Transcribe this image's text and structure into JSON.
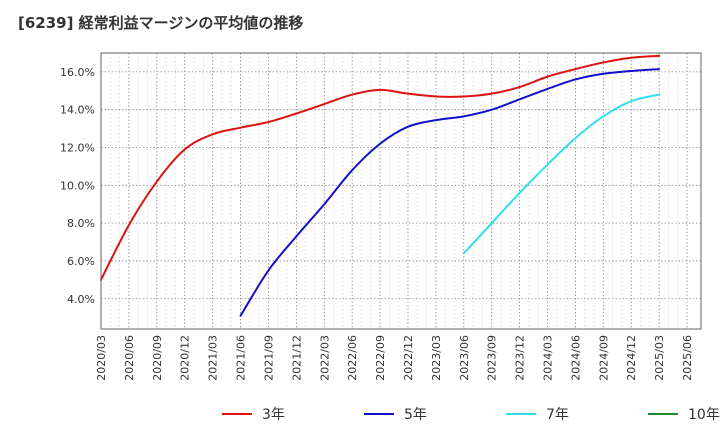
{
  "title": "[6239]  経常利益マージンの平均値の推移",
  "chart_data": {
    "type": "line",
    "title": "[6239]  経常利益マージンの平均値の推移",
    "xlabel": "",
    "ylabel": "",
    "x_tick_labels": [
      "2020/03",
      "2020/06",
      "2020/09",
      "2020/12",
      "2021/03",
      "2021/06",
      "2021/09",
      "2021/12",
      "2022/03",
      "2022/06",
      "2022/09",
      "2022/12",
      "2023/03",
      "2023/06",
      "2023/09",
      "2023/12",
      "2024/03",
      "2024/06",
      "2024/09",
      "2024/12",
      "2025/03",
      "2025/06"
    ],
    "y_ticks": [
      4.0,
      6.0,
      8.0,
      10.0,
      12.0,
      14.0,
      16.0
    ],
    "y_tick_labels": [
      "4.0%",
      "6.0%",
      "8.0%",
      "10.0%",
      "12.0%",
      "14.0%",
      "16.0%"
    ],
    "ylim": [
      2.4,
      17.0
    ],
    "grid": true,
    "legend_position": "bottom",
    "series": [
      {
        "name": "3年",
        "color": "#dd1111",
        "points": [
          [
            "2020/03",
            5.0
          ],
          [
            "2020/06",
            7.9
          ],
          [
            "2020/09",
            10.2
          ],
          [
            "2020/12",
            11.9
          ],
          [
            "2021/03",
            12.7
          ],
          [
            "2021/06",
            13.05
          ],
          [
            "2021/09",
            13.35
          ],
          [
            "2021/12",
            13.8
          ],
          [
            "2022/03",
            14.3
          ],
          [
            "2022/06",
            14.8
          ],
          [
            "2022/09",
            15.05
          ],
          [
            "2022/12",
            14.85
          ],
          [
            "2023/03",
            14.7
          ],
          [
            "2023/06",
            14.7
          ],
          [
            "2023/09",
            14.85
          ],
          [
            "2023/12",
            15.2
          ],
          [
            "2024/03",
            15.75
          ],
          [
            "2024/06",
            16.15
          ],
          [
            "2024/09",
            16.5
          ],
          [
            "2024/12",
            16.75
          ],
          [
            "2025/03",
            16.85
          ]
        ]
      },
      {
        "name": "5年",
        "color": "#1111cc",
        "points": [
          [
            "2021/06",
            3.1
          ],
          [
            "2021/09",
            5.5
          ],
          [
            "2021/12",
            7.3
          ],
          [
            "2022/03",
            9.0
          ],
          [
            "2022/06",
            10.8
          ],
          [
            "2022/09",
            12.2
          ],
          [
            "2022/12",
            13.1
          ],
          [
            "2023/03",
            13.45
          ],
          [
            "2023/06",
            13.65
          ],
          [
            "2023/09",
            14.0
          ],
          [
            "2023/12",
            14.55
          ],
          [
            "2024/03",
            15.1
          ],
          [
            "2024/06",
            15.6
          ],
          [
            "2024/09",
            15.9
          ],
          [
            "2024/12",
            16.05
          ],
          [
            "2025/03",
            16.15
          ]
        ]
      },
      {
        "name": "7年",
        "color": "#33ddee",
        "points": [
          [
            "2023/06",
            6.4
          ],
          [
            "2023/09",
            8.0
          ],
          [
            "2023/12",
            9.6
          ],
          [
            "2024/03",
            11.1
          ],
          [
            "2024/06",
            12.5
          ],
          [
            "2024/09",
            13.65
          ],
          [
            "2024/12",
            14.45
          ],
          [
            "2025/03",
            14.8
          ]
        ]
      },
      {
        "name": "10年",
        "color": "#228822",
        "points": []
      }
    ]
  }
}
